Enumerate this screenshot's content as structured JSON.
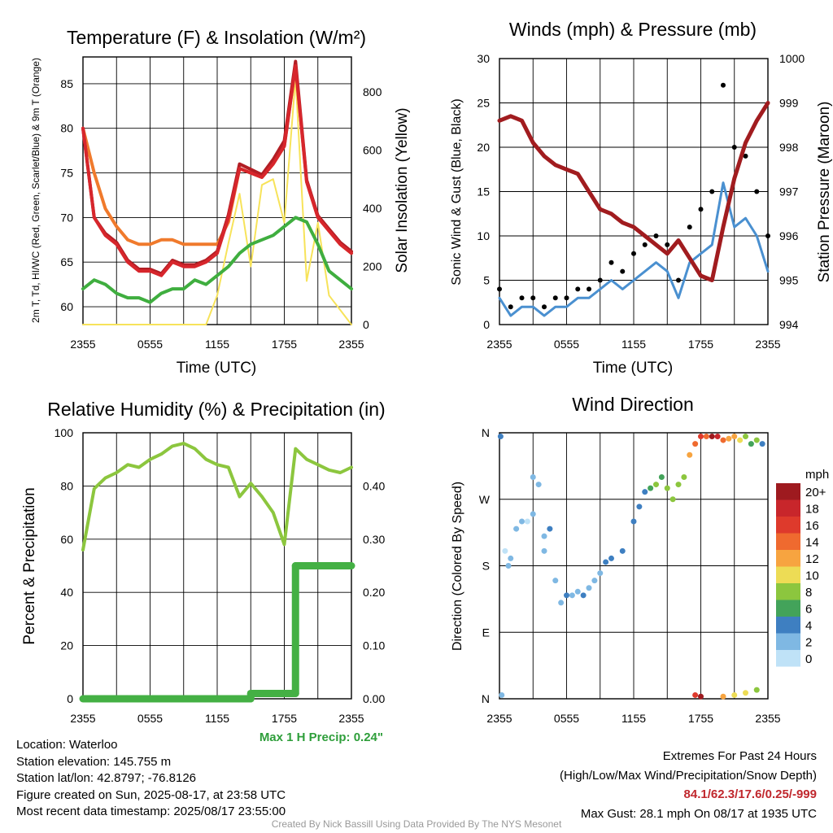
{
  "colors": {
    "temp": "#d7262c",
    "heat_index": "#b21e24",
    "dewpoint": "#3fae3f",
    "temp9m": "#f07a2c",
    "insolation": "#f7e35a",
    "wind": "#4a90d0",
    "gust": "#000000",
    "pressure": "#a11c1f",
    "rh": "#8cc63e",
    "precip": "#44b044",
    "grid": "#000000"
  },
  "x_ticks": [
    "2355",
    "0555",
    "1155",
    "1755",
    "2355"
  ],
  "panels": {
    "temp": {
      "title": "Temperature (F) & Insolation (W/m²)",
      "xlabel": "Time (UTC)",
      "ylabel_left": "2m T, Td, HI/WC (Red, Green, Scarlet/Blue) & 9m T (Orange)",
      "ylabel_right": "Solar Insolation (Yellow)"
    },
    "wind": {
      "title": "Winds (mph) & Pressure (mb)",
      "xlabel": "Time (UTC)",
      "ylabel_left": "Sonic Wind & Gust (Blue, Black)",
      "ylabel_right": "Station Pressure (Maroon)"
    },
    "rh": {
      "title": "Relative Humidity (%) & Precipitation (in)",
      "ylabel_left": "Percent & Precipitation",
      "note": "Max 1 H Precip: 0.24\""
    },
    "dir": {
      "title": "Wind Direction",
      "ylabel_left": "Direction (Colored By Speed)",
      "legend_title": "mph",
      "legend_labels": [
        "20+",
        "18",
        "16",
        "14",
        "12",
        "10",
        "8",
        "6",
        "4",
        "2",
        "0"
      ],
      "legend_colors": [
        "#9e1a1f",
        "#c8262b",
        "#de3a2c",
        "#ef6a2f",
        "#f7a440",
        "#eddc55",
        "#8cc63e",
        "#43a35a",
        "#3e7fc1",
        "#7fb8e3",
        "#bfe2f7"
      ]
    }
  },
  "info": {
    "location": "Location: Waterloo",
    "elevation": "Station elevation: 145.755 m",
    "latlon": "Station lat/lon: 42.8797; -76.8126",
    "created": "Figure created on Sun, 2025-08-17, at 23:58 UTC",
    "recent": "Most recent data timestamp: 2025/08/17 23:55:00"
  },
  "extremes": {
    "title": "Extremes For Past 24 Hours",
    "subtitle": "(High/Low/Max Wind/Precipitation/Snow Depth)",
    "values": "84.1/62.3/17.6/0.25/-999",
    "gust": "Max Gust: 28.1 mph On 08/17 at 1935 UTC"
  },
  "credit": "Created By Nick Bassill Using Data Provided By The NYS Mesonet",
  "chart_data": [
    {
      "type": "line",
      "x_hours": [
        0,
        1,
        2,
        3,
        4,
        5,
        6,
        7,
        8,
        9,
        10,
        11,
        12,
        13,
        14,
        15,
        16,
        17,
        18,
        19,
        20,
        21,
        22,
        23,
        24
      ],
      "ylim": [
        58,
        88
      ],
      "y2lim": [
        0,
        920
      ],
      "yticks": [
        60,
        65,
        70,
        75,
        80,
        85
      ],
      "y2ticks": [
        0,
        200,
        400,
        600,
        800
      ],
      "series": [
        {
          "role": "temp",
          "values": [
            80,
            70,
            68,
            67,
            65,
            64,
            64,
            63.5,
            65,
            64.5,
            64.5,
            65,
            66,
            70,
            75.5,
            75,
            74.5,
            76,
            78,
            87,
            74,
            70,
            68.5,
            67,
            66
          ]
        },
        {
          "role": "heat_index",
          "values": [
            80,
            70,
            68.2,
            67.2,
            65.2,
            64.2,
            64.2,
            63.7,
            65.2,
            64.7,
            64.7,
            65.2,
            66.2,
            70.3,
            76,
            75.4,
            74.8,
            76.5,
            78.6,
            87.5,
            74.2,
            70.2,
            68.7,
            67.2,
            66.2
          ]
        },
        {
          "role": "dewpoint",
          "values": [
            62,
            63,
            62.5,
            61.5,
            61,
            61,
            60.5,
            61.5,
            62,
            62,
            63,
            62.5,
            63.5,
            64.5,
            66,
            67,
            67.5,
            68,
            69,
            70,
            69.5,
            67,
            64,
            63,
            62
          ]
        },
        {
          "role": "temp9m",
          "values": [
            80,
            75,
            71,
            69,
            67.5,
            67,
            67,
            67.5,
            67.5,
            67,
            67,
            67,
            67,
            69.5,
            75.5,
            75,
            74.5,
            76,
            78,
            87,
            74,
            70,
            68.5,
            67,
            66
          ]
        },
        {
          "role": "insolation",
          "values": [
            0,
            0,
            0,
            0,
            0,
            0,
            0,
            0,
            0,
            0,
            0,
            0,
            100,
            280,
            450,
            200,
            480,
            500,
            350,
            850,
            150,
            350,
            100,
            50,
            0
          ]
        }
      ]
    },
    {
      "type": "line",
      "x_hours": [
        0,
        1,
        2,
        3,
        4,
        5,
        6,
        7,
        8,
        9,
        10,
        11,
        12,
        13,
        14,
        15,
        16,
        17,
        18,
        19,
        20,
        21,
        22,
        23,
        24
      ],
      "ylim": [
        0,
        30
      ],
      "y2lim": [
        994,
        1000
      ],
      "yticks": [
        0,
        5,
        10,
        15,
        20,
        25,
        30
      ],
      "y2ticks": [
        994,
        995,
        996,
        997,
        998,
        999,
        1000
      ],
      "series": [
        {
          "role": "wind",
          "values": [
            3,
            1,
            2,
            2,
            1,
            2,
            2,
            3,
            3,
            4,
            5,
            4,
            5,
            6,
            7,
            6,
            3,
            7,
            8,
            9,
            16,
            11,
            12,
            10,
            6
          ]
        },
        {
          "role": "gust",
          "values": [
            4,
            2,
            3,
            3,
            2,
            3,
            3,
            4,
            4,
            5,
            7,
            6,
            8,
            9,
            10,
            9,
            5,
            11,
            13,
            15,
            27,
            20,
            19,
            15,
            10
          ]
        },
        {
          "role": "pressure",
          "values": [
            998.6,
            998.7,
            998.6,
            998.1,
            997.8,
            997.6,
            997.5,
            997.4,
            997.0,
            996.6,
            996.5,
            996.3,
            996.2,
            996.0,
            995.8,
            995.6,
            995.9,
            995.5,
            995.1,
            995.0,
            996.2,
            997.3,
            998.1,
            998.6,
            999.0
          ]
        }
      ]
    },
    {
      "type": "line",
      "x_hours": [
        0,
        1,
        2,
        3,
        4,
        5,
        6,
        7,
        8,
        9,
        10,
        11,
        12,
        13,
        14,
        15,
        16,
        17,
        18,
        19,
        20,
        21,
        22,
        23,
        24
      ],
      "ylim": [
        0,
        100
      ],
      "y2lim": [
        0,
        0.5
      ],
      "yticks": [
        0,
        20,
        40,
        60,
        80,
        100
      ],
      "y2ticks": [
        "0.00",
        "0.10",
        "0.20",
        "0.30",
        "0.40"
      ],
      "series": [
        {
          "role": "rh",
          "values": [
            56,
            79,
            83,
            85,
            88,
            87,
            90,
            92,
            95,
            96,
            94,
            90,
            88,
            87,
            76,
            81,
            76,
            70,
            58,
            94,
            90,
            88,
            86,
            85,
            87
          ]
        },
        {
          "role": "precip",
          "values": [
            0,
            0,
            0,
            0,
            0,
            0,
            0,
            0,
            0,
            0,
            0,
            0,
            0,
            0,
            0,
            0.01,
            0.01,
            0.01,
            0.01,
            0.25,
            0.25,
            0.25,
            0.25,
            0.25,
            0.25
          ]
        }
      ]
    },
    {
      "type": "scatter",
      "yticks": [
        "N",
        "E",
        "S",
        "W",
        "N"
      ],
      "ylim_deg": [
        0,
        360
      ],
      "points_hours_deg_mph": [
        [
          0.1,
          355,
          3
        ],
        [
          0.2,
          5,
          2
        ],
        [
          0.5,
          200,
          0
        ],
        [
          0.8,
          180,
          1
        ],
        [
          1,
          190,
          1
        ],
        [
          1.5,
          230,
          1
        ],
        [
          2,
          240,
          1
        ],
        [
          2.5,
          240,
          0
        ],
        [
          3,
          300,
          1
        ],
        [
          3,
          250,
          2
        ],
        [
          3.5,
          290,
          1
        ],
        [
          4,
          220,
          1
        ],
        [
          4,
          200,
          2
        ],
        [
          4.5,
          230,
          3
        ],
        [
          5,
          160,
          2
        ],
        [
          5.5,
          130,
          2
        ],
        [
          6,
          140,
          3
        ],
        [
          6.5,
          140,
          1
        ],
        [
          7,
          145,
          2
        ],
        [
          7.5,
          140,
          3
        ],
        [
          8,
          150,
          1
        ],
        [
          8.5,
          160,
          2
        ],
        [
          9,
          170,
          2
        ],
        [
          9.5,
          185,
          4
        ],
        [
          10,
          190,
          3
        ],
        [
          11,
          200,
          4
        ],
        [
          12,
          240,
          3
        ],
        [
          12.5,
          260,
          3
        ],
        [
          13,
          280,
          4
        ],
        [
          13.5,
          285,
          5
        ],
        [
          14,
          290,
          7
        ],
        [
          14.5,
          300,
          5
        ],
        [
          15,
          285,
          8
        ],
        [
          15.5,
          270,
          7
        ],
        [
          16,
          290,
          8
        ],
        [
          16.5,
          300,
          8
        ],
        [
          17,
          330,
          12
        ],
        [
          17.5,
          345,
          14
        ],
        [
          18,
          355,
          16
        ],
        [
          18.5,
          355,
          14
        ],
        [
          19,
          355,
          20
        ],
        [
          19.5,
          355,
          18
        ],
        [
          20,
          350,
          13
        ],
        [
          20.5,
          352,
          11
        ],
        [
          21,
          355,
          12
        ],
        [
          21.5,
          350,
          9
        ],
        [
          22,
          355,
          8
        ],
        [
          22.5,
          345,
          6
        ],
        [
          23,
          350,
          7
        ],
        [
          23.5,
          345,
          4
        ],
        [
          17.5,
          5,
          15
        ],
        [
          18,
          3,
          19
        ],
        [
          20,
          3,
          12
        ],
        [
          21,
          5,
          10
        ],
        [
          22,
          8,
          9
        ],
        [
          23,
          12,
          7
        ]
      ]
    }
  ]
}
